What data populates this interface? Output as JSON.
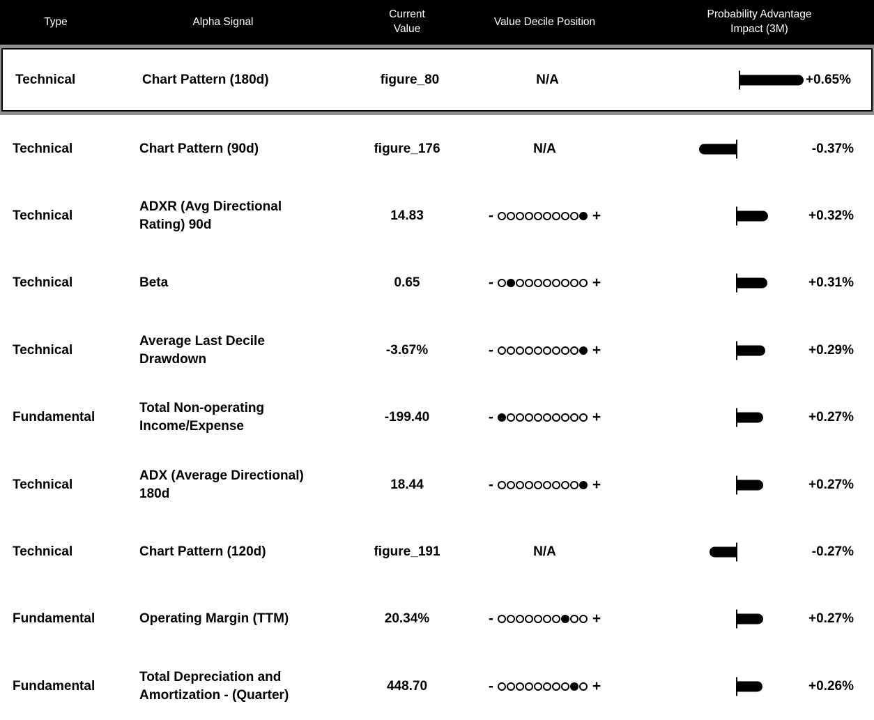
{
  "table": {
    "columns": [
      {
        "label": "Type"
      },
      {
        "label": "Alpha Signal"
      },
      {
        "label": "Current\nValue"
      },
      {
        "label": "Value Decile Position"
      },
      {
        "label": "Probability Advantage\nImpact (3M)"
      }
    ],
    "na_label": "N/A",
    "decile_minus": "-",
    "decile_plus": "+",
    "decile_total": 10,
    "rows": [
      {
        "type": "Technical",
        "signal": "Chart Pattern (180d)",
        "value": "figure_80",
        "decile": null,
        "impact": "+0.65%",
        "impact_pct": 0.65,
        "selected": true
      },
      {
        "type": "Technical",
        "signal": "Chart Pattern (90d)",
        "value": "figure_176",
        "decile": null,
        "impact": "-0.37%",
        "impact_pct": -0.37,
        "selected": false
      },
      {
        "type": "Technical",
        "signal": "ADXR (Avg Directional\nRating) 90d",
        "value": "14.83",
        "decile": 10,
        "impact": "+0.32%",
        "impact_pct": 0.32,
        "selected": false
      },
      {
        "type": "Technical",
        "signal": "Beta",
        "value": "0.65",
        "decile": 2,
        "impact": "+0.31%",
        "impact_pct": 0.31,
        "selected": false
      },
      {
        "type": "Technical",
        "signal": "Average Last Decile\nDrawdown",
        "value": "-3.67%",
        "decile": 10,
        "impact": "+0.29%",
        "impact_pct": 0.29,
        "selected": false
      },
      {
        "type": "Fundamental",
        "signal": "Total Non-operating\nIncome/Expense",
        "value": "-199.40",
        "decile": 1,
        "impact": "+0.27%",
        "impact_pct": 0.27,
        "selected": false
      },
      {
        "type": "Technical",
        "signal": "ADX (Average Directional)\n180d",
        "value": "18.44",
        "decile": 10,
        "impact": "+0.27%",
        "impact_pct": 0.27,
        "selected": false
      },
      {
        "type": "Technical",
        "signal": "Chart Pattern (120d)",
        "value": "figure_191",
        "decile": null,
        "impact": "-0.27%",
        "impact_pct": -0.27,
        "selected": false
      },
      {
        "type": "Fundamental",
        "signal": "Operating Margin (TTM)",
        "value": "20.34%",
        "decile": 8,
        "impact": "+0.27%",
        "impact_pct": 0.27,
        "selected": false
      },
      {
        "type": "Fundamental",
        "signal": "Total Depreciation and\nAmortization - (Quarter)",
        "value": "448.70",
        "decile": 9,
        "impact": "+0.26%",
        "impact_pct": 0.26,
        "selected": false
      }
    ]
  },
  "colors": {
    "header_bg": "#000000",
    "row_bg": "#ffffff",
    "text": "#000000",
    "bar": "#000000",
    "selection_ring_gray": "#8f8f8f",
    "selection_ring_black": "#000000"
  },
  "chart_data": {
    "type": "bar",
    "orientation": "horizontal",
    "title": "Probability Advantage Impact (3M)",
    "unit": "%",
    "categories": [
      "Chart Pattern (180d)",
      "Chart Pattern (90d)",
      "ADXR (Avg Directional Rating) 90d",
      "Beta",
      "Average Last Decile Drawdown",
      "Total Non-operating Income/Expense",
      "ADX (Average Directional) 180d",
      "Chart Pattern (120d)",
      "Operating Margin (TTM)",
      "Total Depreciation and Amortization - (Quarter)"
    ],
    "values": [
      0.65,
      -0.37,
      0.32,
      0.31,
      0.29,
      0.27,
      0.27,
      -0.27,
      0.27,
      0.26
    ],
    "baseline": 0
  }
}
